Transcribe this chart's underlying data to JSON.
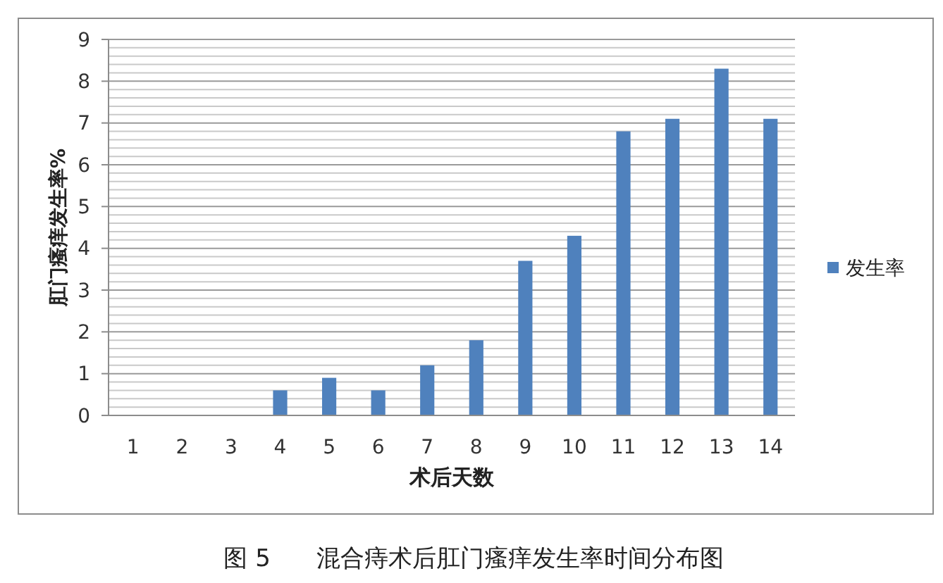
{
  "chart_data": {
    "type": "bar",
    "title": "图 5      混合痔术后肛门瘙痒发生率时间分布图",
    "xlabel": "术后天数",
    "ylabel": "肛门瘙痒发生率%",
    "categories": [
      "1",
      "2",
      "3",
      "4",
      "5",
      "6",
      "7",
      "8",
      "9",
      "10",
      "11",
      "12",
      "13",
      "14"
    ],
    "series": [
      {
        "name": "发生率",
        "color": "#4f81bd",
        "values": [
          0,
          0,
          0,
          0.6,
          0.9,
          0.6,
          1.2,
          1.8,
          3.7,
          4.3,
          6.8,
          7.1,
          8.3,
          7.1
        ]
      }
    ],
    "ylim": [
      0,
      9
    ],
    "yticks": [
      0,
      {
        "value": 0.2,
        "label": null
      },
      {
        "value": 0.4,
        "label": null
      },
      {
        "value": 0.6,
        "label": null
      },
      {
        "value": 0.8,
        "label": null
      },
      1,
      {
        "value": 1.2,
        "label": null
      },
      {
        "value": 1.4,
        "label": null
      },
      {
        "value": 1.6,
        "label": null
      },
      {
        "value": 1.8,
        "label": null
      },
      2,
      {
        "value": 2.2,
        "label": null
      },
      {
        "value": 2.4,
        "label": null
      },
      {
        "value": 2.6,
        "label": null
      },
      {
        "value": 2.8,
        "label": null
      },
      3,
      {
        "value": 3.2,
        "label": null
      },
      {
        "value": 3.4,
        "label": null
      },
      {
        "value": 3.6,
        "label": null
      },
      {
        "value": 3.8,
        "label": null
      },
      4,
      {
        "value": 4.2,
        "label": null
      },
      {
        "value": 4.4,
        "label": null
      },
      {
        "value": 4.6,
        "label": null
      },
      {
        "value": 4.8,
        "label": null
      },
      5,
      {
        "value": 5.2,
        "label": null
      },
      {
        "value": 5.4,
        "label": null
      },
      {
        "value": 5.6,
        "label": null
      },
      {
        "value": 5.8,
        "label": null
      },
      6,
      {
        "value": 6.2,
        "label": null
      },
      {
        "value": 6.4,
        "label": null
      },
      {
        "value": 6.6,
        "label": null
      },
      {
        "value": 6.8,
        "label": null
      },
      7,
      {
        "value": 7.2,
        "label": null
      },
      {
        "value": 7.4,
        "label": null
      },
      {
        "value": 7.6,
        "label": null
      },
      {
        "value": 7.8,
        "label": null
      },
      8,
      {
        "value": 8.2,
        "label": null
      },
      {
        "value": 8.4,
        "label": null
      },
      {
        "value": 8.6,
        "label": null
      },
      {
        "value": 8.8,
        "label": null
      },
      9
    ],
    "grid": "y",
    "legend": "right"
  }
}
